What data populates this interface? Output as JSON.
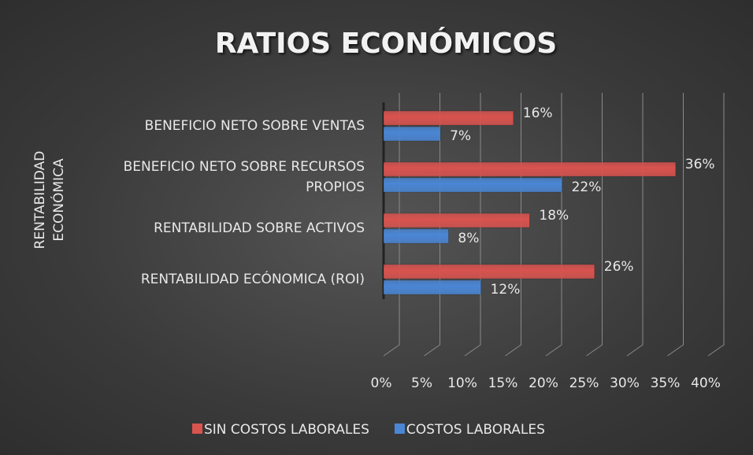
{
  "chart_data": {
    "type": "bar",
    "orientation": "horizontal",
    "title": "RATIOS ECONÓMICOS",
    "y_label": "RENTABILIDAD ECONÓMICA",
    "categories": [
      "BENEFICIO NETO SOBRE VENTAS",
      "BENEFICIO NETO SOBRE RECURSOS PROPIOS",
      "RENTABILIDAD SOBRE ACTIVOS",
      "RENTABILIDAD ECÓNOMICA (ROI)"
    ],
    "series": [
      {
        "name": "SIN COSTOS LABORALES",
        "color": "#d9534f",
        "values": [
          16,
          36,
          18,
          26
        ],
        "value_labels": [
          "16%",
          "36%",
          "18%",
          "26%"
        ]
      },
      {
        "name": "COSTOS LABORALES",
        "color": "#4a86d4",
        "values": [
          7,
          22,
          8,
          12
        ],
        "value_labels": [
          "7%",
          "22%",
          "8%",
          "12%"
        ]
      }
    ],
    "xlim": [
      0,
      40
    ],
    "xticks": [
      {
        "value": 0,
        "label": "0%"
      },
      {
        "value": 5,
        "label": "5%"
      },
      {
        "value": 10,
        "label": "10%"
      },
      {
        "value": 15,
        "label": "15%"
      },
      {
        "value": 20,
        "label": "20%"
      },
      {
        "value": 25,
        "label": "25%"
      },
      {
        "value": 30,
        "label": "30%"
      },
      {
        "value": 35,
        "label": "35%"
      },
      {
        "value": 40,
        "label": "40%"
      }
    ],
    "grid": true,
    "legend": "bottom"
  }
}
